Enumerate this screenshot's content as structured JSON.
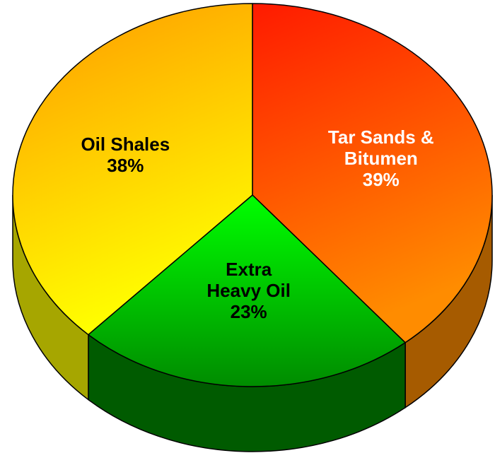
{
  "chart_data": {
    "type": "pie3d",
    "categories": [
      "Tar Sands & Bitumen",
      "Extra Heavy Oil",
      "Oil Shales"
    ],
    "values": [
      39,
      23,
      38
    ],
    "value_labels": [
      "39%",
      "23%",
      "38%"
    ],
    "colors": [
      [
        "#ff1a00",
        "#ff8c00"
      ],
      [
        "#00ff00",
        "#008c00"
      ],
      [
        "#ff9900",
        "#ffff00"
      ]
    ],
    "label_colors": [
      "#ffffff",
      "#000000",
      "#000000"
    ]
  }
}
